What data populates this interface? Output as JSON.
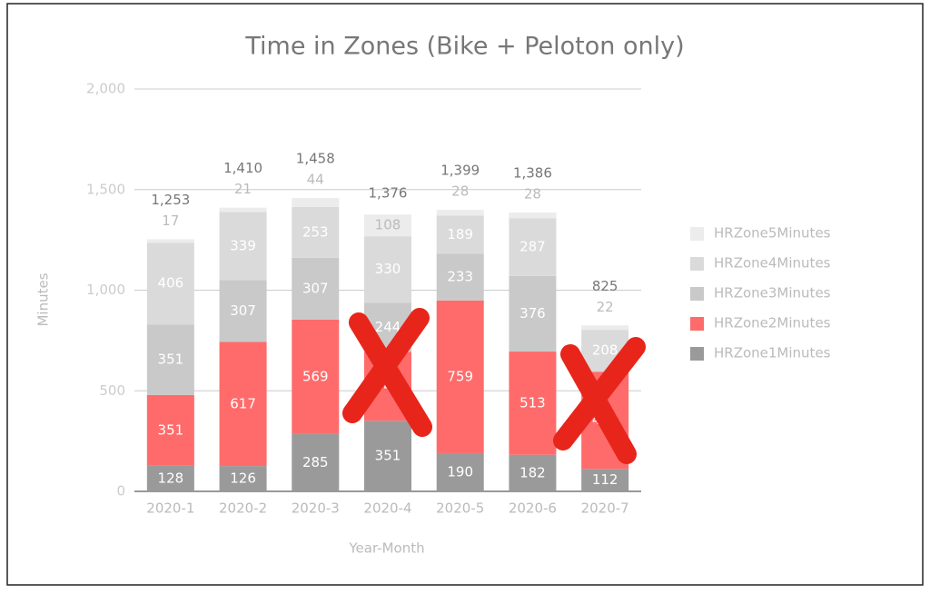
{
  "chart_data": {
    "type": "stacked-bar",
    "title": "Time in Zones (Bike + Peloton only)",
    "x_label": "Year-Month",
    "y_label": "Minutes",
    "categories": [
      "2020-1",
      "2020-2",
      "2020-3",
      "2020-4",
      "2020-5",
      "2020-6",
      "2020-7"
    ],
    "series": [
      {
        "name": "HRZone1Minutes",
        "color": "#9a9a9a",
        "values": [
          128,
          126,
          285,
          351,
          190,
          182,
          112
        ]
      },
      {
        "name": "HRZone2Minutes",
        "color": "#ff6b6b",
        "values": [
          351,
          617,
          569,
          343,
          759,
          513,
          483
        ]
      },
      {
        "name": "HRZone3Minutes",
        "color": "#c9c9c9",
        "values": [
          351,
          307,
          307,
          244,
          233,
          376,
          null
        ]
      },
      {
        "name": "HRZone4Minutes",
        "color": "#dadada",
        "values": [
          406,
          339,
          253,
          330,
          189,
          287,
          208
        ]
      },
      {
        "name": "HRZone5Minutes",
        "color": "#ececec",
        "values": [
          17,
          21,
          44,
          108,
          28,
          28,
          22
        ]
      }
    ],
    "totals": {
      "values": [
        1253,
        1410,
        1458,
        1376,
        1399,
        1386,
        825
      ],
      "value_labels": [
        "1,253",
        "1,410",
        "1,458",
        "1,376",
        "1,399",
        "1,386",
        "825"
      ]
    },
    "ylim": [
      0,
      2000
    ],
    "yticks": [
      0,
      500,
      {
        "value": 1000,
        "label": "1,000"
      },
      {
        "value": 1500,
        "label": "1,500"
      },
      {
        "value": 2000,
        "label": "2,000"
      }
    ],
    "grid": true
  }
}
